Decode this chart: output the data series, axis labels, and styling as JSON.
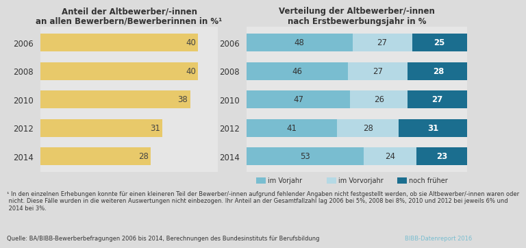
{
  "years": [
    "2006",
    "2008",
    "2010",
    "2012",
    "2014"
  ],
  "left_values": [
    40,
    40,
    38,
    31,
    28
  ],
  "left_color": "#E8C96A",
  "left_title_line1": "Anteil der Altbewerber/-innen",
  "left_title_line2": "an allen Bewerbern/Bewerberinnen in %¹",
  "right_title_line1": "Verteilung der Altbewerber/-innen",
  "right_title_line2": "nach Erstbewerbungsjahr in %",
  "right_vorjahr": [
    48,
    46,
    47,
    41,
    53
  ],
  "right_vorvorjahr": [
    27,
    27,
    26,
    28,
    24
  ],
  "right_frueher": [
    25,
    28,
    27,
    31,
    23
  ],
  "color_vorjahr": "#79BDD0",
  "color_vorvorjahr": "#B5D9E5",
  "color_frueher": "#1B6E8F",
  "legend_labels": [
    "im Vorjahr",
    "im Vorvorjahr",
    "noch früher"
  ],
  "bg_color": "#DCDCDC",
  "chart_bg": "#E6E6E6",
  "footnote_line1": "¹ In den einzelnen Erhebungen konnte für einen kleineren Teil der Bewerber/-innen aufgrund fehlender Angaben nicht festgestellt werden, ob sie Altbewerber/-innen waren oder",
  "footnote_line2": " nicht. Diese Fälle wurden in die weiteren Auswertungen nicht einbezogen. Ihr Anteil an der Gesamtfallzahl lag 2006 bei 5%, 2008 bei 8%, 2010 und 2012 bei jeweils 6% und",
  "footnote_line3": " 2014 bei 3%.",
  "source": "Quelle: BA/BIBB-Bewerberbefragungen 2006 bis 2014, Berechnungen des Bundesinstituts für Berufsbildung",
  "bibb": "BIBB-Datenreport 2016",
  "bar_height": 0.62,
  "label_fontsize": 8.5,
  "title_fontsize": 8.5,
  "year_fontsize": 8.5
}
